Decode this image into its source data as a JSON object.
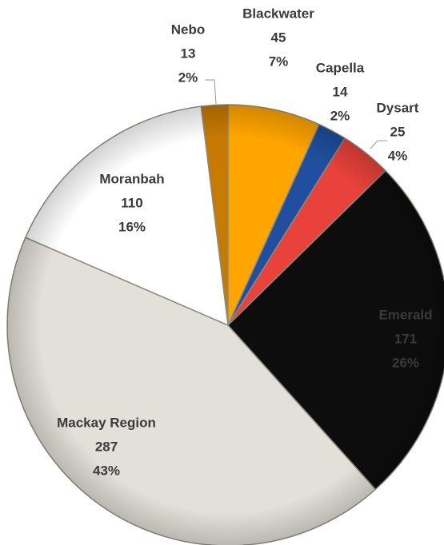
{
  "chart_data": {
    "type": "pie",
    "categories": [
      "Nebo",
      "Blackwater",
      "Capella",
      "Dysart",
      "Emerald",
      "Mackay Region",
      "Moranbah"
    ],
    "values": [
      13,
      45,
      14,
      25,
      171,
      287,
      110
    ],
    "percent_labels": [
      "2%",
      "7%",
      "2%",
      "4%",
      "26%",
      "43%",
      "16%"
    ],
    "colors": [
      "#c67a00",
      "#ffa500",
      "#1f4f9e",
      "#e8423a",
      "#0d0d0d",
      "#e2e0d8",
      "#ffffff"
    ]
  }
}
